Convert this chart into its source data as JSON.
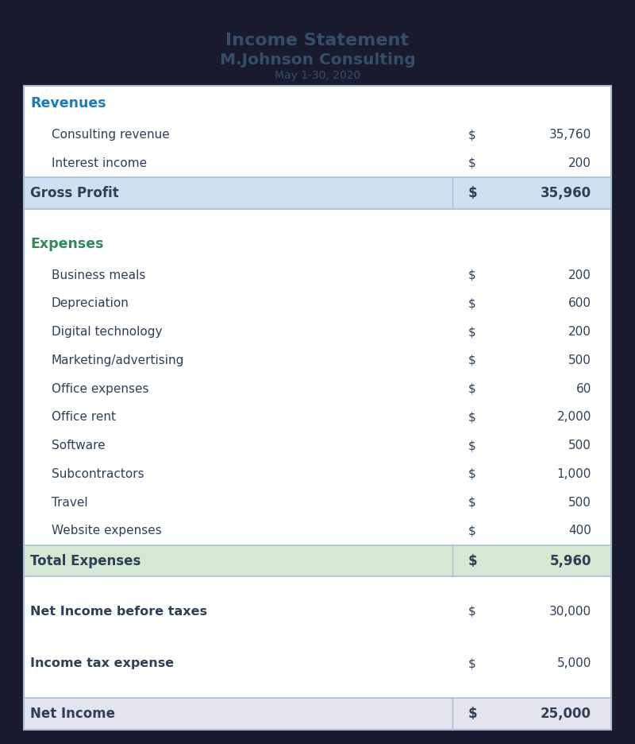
{
  "title_line1": "Income Statement",
  "title_line2": "M.Johnson Consulting",
  "title_line3": "May 1-30, 2020",
  "title_color": "#344f6b",
  "bg_color": "#1a1a2e",
  "table_bg": "#ffffff",
  "border_color": "#a8bfd4",
  "revenues_label_color": "#1a7abf",
  "expenses_label_color": "#2e8b57",
  "row_text_color": "#2e4057",
  "highlight_blue_bg": "#cfe0f0",
  "highlight_green_bg": "#d5e8d4",
  "highlight_grey_bg": "#e4e4ee",
  "rows": [
    {
      "type": "section_header",
      "label": "Revenues",
      "color": "#1a7abf"
    },
    {
      "type": "item",
      "label": "Consulting revenue",
      "dollar": "$",
      "value": "35,760"
    },
    {
      "type": "item",
      "label": "Interest income",
      "dollar": "$",
      "value": "200"
    },
    {
      "type": "subtotal",
      "label": "Gross Profit",
      "dollar": "$",
      "value": "35,960",
      "bg": "#cfe0f0"
    },
    {
      "type": "blank"
    },
    {
      "type": "section_header",
      "label": "Expenses",
      "color": "#2e8b57"
    },
    {
      "type": "item",
      "label": "Business meals",
      "dollar": "$",
      "value": "200"
    },
    {
      "type": "item",
      "label": "Depreciation",
      "dollar": "$",
      "value": "600"
    },
    {
      "type": "item",
      "label": "Digital technology",
      "dollar": "$",
      "value": "200"
    },
    {
      "type": "item",
      "label": "Marketing/advertising",
      "dollar": "$",
      "value": "500"
    },
    {
      "type": "item",
      "label": "Office expenses",
      "dollar": "$",
      "value": "60"
    },
    {
      "type": "item",
      "label": "Office rent",
      "dollar": "$",
      "value": "2,000"
    },
    {
      "type": "item",
      "label": "Software",
      "dollar": "$",
      "value": "500"
    },
    {
      "type": "item",
      "label": "Subcontractors",
      "dollar": "$",
      "value": "1,000"
    },
    {
      "type": "item",
      "label": "Travel",
      "dollar": "$",
      "value": "500"
    },
    {
      "type": "item",
      "label": "Website expenses",
      "dollar": "$",
      "value": "400"
    },
    {
      "type": "subtotal",
      "label": "Total Expenses",
      "dollar": "$",
      "value": "5,960",
      "bg": "#d5e8d4"
    },
    {
      "type": "blank"
    },
    {
      "type": "bold_item",
      "label": "Net Income before taxes",
      "dollar": "$",
      "value": "30,000"
    },
    {
      "type": "blank"
    },
    {
      "type": "bold_item",
      "label": "Income tax expense",
      "dollar": "$",
      "value": "5,000"
    },
    {
      "type": "blank"
    },
    {
      "type": "subtotal",
      "label": "Net Income",
      "dollar": "$",
      "value": "25,000",
      "bg": "#e4e4ee"
    }
  ]
}
